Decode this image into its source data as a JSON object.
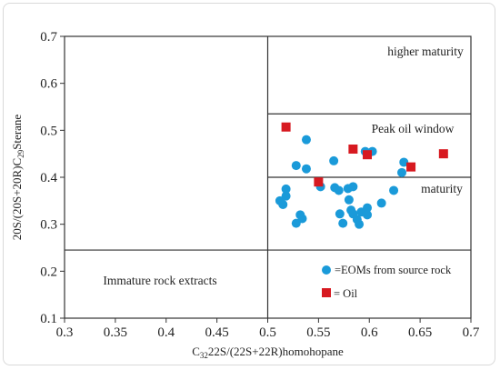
{
  "chart_data": {
    "type": "scatter",
    "title": "",
    "xlabel_parts": {
      "main": "C",
      "sub": "32",
      "rest": "22S/(22S+22R)homohopane"
    },
    "ylabel_parts": {
      "pre": "20S/(20S+20R)C",
      "sub": "29",
      "post": "Sterane"
    },
    "xlim": [
      0.3,
      0.7
    ],
    "ylim": [
      0.1,
      0.7
    ],
    "xticks": [
      "0.3",
      "0.35",
      "0.4",
      "0.45",
      "0.5",
      "0.55",
      "0.6",
      "0.65",
      "0.7"
    ],
    "yticks": [
      "0.1",
      "0.2",
      "0.3",
      "0.4",
      "0.5",
      "0.6",
      "0.7"
    ],
    "grid": false,
    "region_lines": {
      "vertical_x": 0.5,
      "horizontal_full_y": 0.245,
      "horizontal_right_y": [
        0.4,
        0.535
      ]
    },
    "annotations": {
      "higher": "higher maturity",
      "peak": "Peak oil window",
      "maturity": "maturity",
      "immature": "Immature rock extracts"
    },
    "legend": {
      "position": "bottom-right"
    },
    "series": [
      {
        "name": "=EOMs from source rock",
        "marker": "circle",
        "color": "#1a9ad9",
        "points": [
          [
            0.512,
            0.35
          ],
          [
            0.515,
            0.342
          ],
          [
            0.518,
            0.36
          ],
          [
            0.518,
            0.375
          ],
          [
            0.528,
            0.425
          ],
          [
            0.528,
            0.302
          ],
          [
            0.532,
            0.32
          ],
          [
            0.534,
            0.312
          ],
          [
            0.538,
            0.48
          ],
          [
            0.538,
            0.418
          ],
          [
            0.552,
            0.38
          ],
          [
            0.565,
            0.435
          ],
          [
            0.566,
            0.378
          ],
          [
            0.57,
            0.372
          ],
          [
            0.571,
            0.322
          ],
          [
            0.574,
            0.302
          ],
          [
            0.579,
            0.376
          ],
          [
            0.58,
            0.352
          ],
          [
            0.582,
            0.33
          ],
          [
            0.584,
            0.38
          ],
          [
            0.584,
            0.322
          ],
          [
            0.588,
            0.31
          ],
          [
            0.59,
            0.3
          ],
          [
            0.592,
            0.326
          ],
          [
            0.596,
            0.455
          ],
          [
            0.598,
            0.32
          ],
          [
            0.598,
            0.335
          ],
          [
            0.603,
            0.455
          ],
          [
            0.612,
            0.345
          ],
          [
            0.624,
            0.372
          ],
          [
            0.632,
            0.41
          ],
          [
            0.634,
            0.432
          ]
        ]
      },
      {
        "name": "= Oil",
        "marker": "square",
        "color": "#d71920",
        "points": [
          [
            0.518,
            0.507
          ],
          [
            0.55,
            0.39
          ],
          [
            0.584,
            0.46
          ],
          [
            0.598,
            0.448
          ],
          [
            0.641,
            0.422
          ],
          [
            0.673,
            0.45
          ]
        ]
      }
    ]
  }
}
